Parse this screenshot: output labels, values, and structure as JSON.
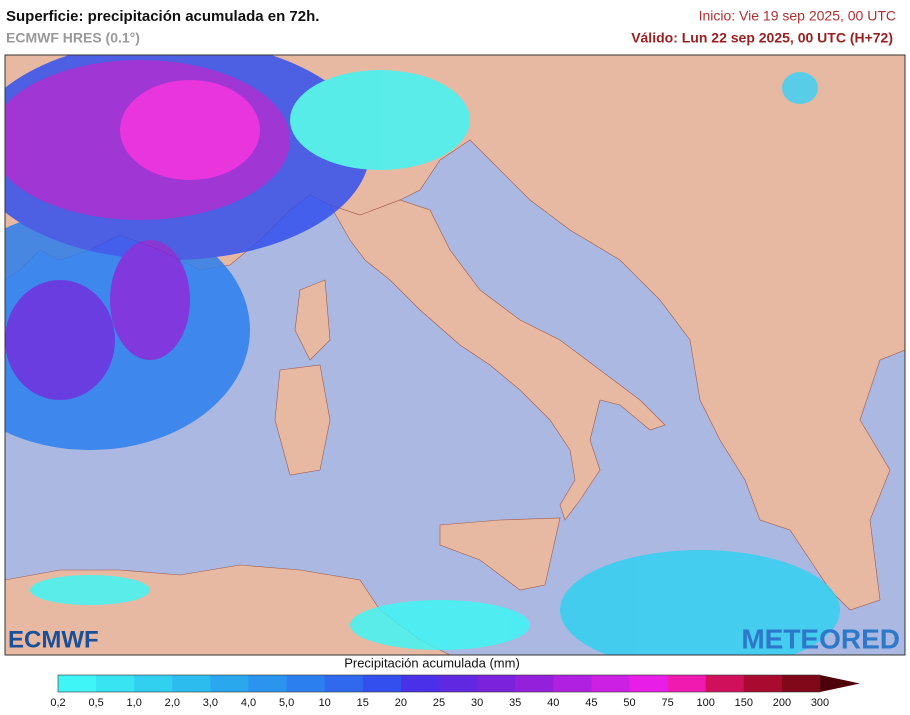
{
  "header": {
    "title": "Superficie: precipitación acumulada en 72h.",
    "model": "ECMWF HRES (0.1°)",
    "start": "Inicio: Vie 19 sep 2025, 00 UTC",
    "valid": "Válido: Lun 22 sep 2025, 00 UTC (H+72)"
  },
  "map": {
    "logo_left": "ECMWF",
    "logo_right": "METEORED"
  },
  "legend": {
    "title": "Precipitación acumulada (mm)",
    "labels": [
      "0,2",
      "0,5",
      "1,0",
      "2,0",
      "3,0",
      "4,0",
      "5,0",
      "10",
      "15",
      "20",
      "25",
      "30",
      "35",
      "40",
      "45",
      "50",
      "75",
      "100",
      "150",
      "200",
      "300"
    ],
    "colors": [
      "#40f5f5",
      "#38e4f2",
      "#32d0f0",
      "#2cbdee",
      "#2aa8ee",
      "#2a94ee",
      "#2c7fee",
      "#3068ee",
      "#3350ee",
      "#4a30e8",
      "#6028e0",
      "#7a22dc",
      "#9420dc",
      "#b020e0",
      "#cc20e4",
      "#e81ee8",
      "#f01ab0",
      "#d0105a",
      "#a80a30",
      "#800818",
      "#500008"
    ]
  }
}
